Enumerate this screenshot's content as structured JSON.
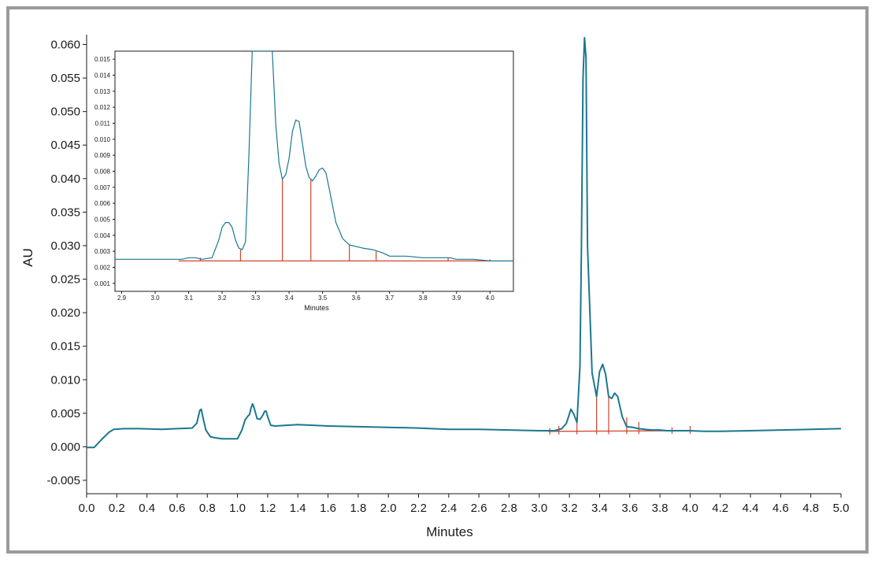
{
  "chart_data": [
    {
      "type": "line",
      "title": "",
      "xlabel": "Minutes",
      "ylabel": "AU",
      "xlim": [
        0.0,
        5.0
      ],
      "ylim": [
        -0.007,
        0.061
      ],
      "xticks": [
        "0.0",
        "0.2",
        "0.4",
        "0.6",
        "0.8",
        "1.0",
        "1.2",
        "1.4",
        "1.6",
        "1.8",
        "2.0",
        "2.2",
        "2.4",
        "2.6",
        "2.8",
        "3.0",
        "3.2",
        "3.4",
        "3.6",
        "3.8",
        "4.0",
        "4.2",
        "4.4",
        "4.6",
        "4.8",
        "5.0"
      ],
      "yticks": [
        "-0.005",
        "0.000",
        "0.005",
        "0.010",
        "0.015",
        "0.020",
        "0.025",
        "0.030",
        "0.035",
        "0.040",
        "0.045",
        "0.050",
        "0.055",
        "0.060"
      ],
      "line_color": "#1a7890",
      "baseline_color": "#d0452a",
      "series": [
        {
          "x": [
            0.0,
            0.05,
            0.1,
            0.15,
            0.18,
            0.25,
            0.35,
            0.5,
            0.6,
            0.7,
            0.73,
            0.75,
            0.76,
            0.77,
            0.79,
            0.82,
            0.86,
            0.9,
            0.95,
            1.0,
            1.03,
            1.05,
            1.07,
            1.08,
            1.09,
            1.1,
            1.11,
            1.13,
            1.15,
            1.17,
            1.18,
            1.19,
            1.2,
            1.22,
            1.25,
            1.4,
            1.6,
            1.8,
            2.0,
            2.2,
            2.4,
            2.6,
            2.8,
            3.0,
            3.05,
            3.1,
            3.15,
            3.18,
            3.2,
            3.21,
            3.23,
            3.25,
            3.27,
            3.28,
            3.29,
            3.3,
            3.31,
            3.32,
            3.35,
            3.38,
            3.4,
            3.42,
            3.44,
            3.46,
            3.48,
            3.5,
            3.52,
            3.55,
            3.58,
            3.62,
            3.66,
            3.7,
            3.75,
            3.8,
            3.85,
            3.9,
            3.95,
            4.0,
            4.1,
            4.2,
            4.4,
            4.6,
            4.8,
            5.0
          ],
          "y": [
            -0.0001,
            -0.0001,
            0.0011,
            0.0022,
            0.0026,
            0.0027,
            0.0027,
            0.0026,
            0.0027,
            0.0028,
            0.0035,
            0.0054,
            0.0056,
            0.0045,
            0.0025,
            0.0015,
            0.0013,
            0.0012,
            0.0012,
            0.0012,
            0.0025,
            0.004,
            0.0046,
            0.0048,
            0.0058,
            0.0064,
            0.0058,
            0.0042,
            0.0041,
            0.0048,
            0.0053,
            0.0053,
            0.0045,
            0.0032,
            0.0031,
            0.0033,
            0.0031,
            0.003,
            0.0029,
            0.0028,
            0.0026,
            0.0026,
            0.0025,
            0.0024,
            0.0024,
            0.0024,
            0.0027,
            0.0035,
            0.0049,
            0.0056,
            0.0048,
            0.0036,
            0.012,
            0.03,
            0.055,
            0.061,
            0.058,
            0.03,
            0.011,
            0.0075,
            0.0112,
            0.0123,
            0.0108,
            0.0075,
            0.0072,
            0.008,
            0.0075,
            0.0045,
            0.003,
            0.0029,
            0.0027,
            0.0026,
            0.0025,
            0.0025,
            0.0024,
            0.0024,
            0.0024,
            0.0024,
            0.0023,
            0.0023,
            0.0024,
            0.0025,
            0.0026,
            0.0027
          ]
        }
      ],
      "baseline": {
        "x": [
          3.06,
          4.0
        ],
        "y": [
          0.0023,
          0.0024
        ]
      },
      "drop_lines": [
        {
          "x": 3.07,
          "y": 0.0028
        },
        {
          "x": 3.13,
          "y": 0.0031
        },
        {
          "x": 3.25,
          "y": 0.0036
        },
        {
          "x": 3.38,
          "y": 0.0075
        },
        {
          "x": 3.46,
          "y": 0.0075
        },
        {
          "x": 3.58,
          "y": 0.0044
        },
        {
          "x": 3.66,
          "y": 0.0037
        },
        {
          "x": 3.88,
          "y": 0.0029
        },
        {
          "x": 4.0,
          "y": 0.0031
        }
      ]
    },
    {
      "type": "line",
      "title": "",
      "xlabel": "Minutes",
      "ylabel": "",
      "xlim": [
        2.88,
        4.07
      ],
      "ylim": [
        0.0005,
        0.0155
      ],
      "xticks": [
        "2.9",
        "3.0",
        "3.1",
        "3.2",
        "3.3",
        "3.4",
        "3.5",
        "3.6",
        "3.7",
        "3.8",
        "3.9",
        "4.0"
      ],
      "yticks": [
        "0.001",
        "0.002",
        "0.003",
        "0.004",
        "0.005",
        "0.006",
        "0.007",
        "0.008",
        "0.009",
        "0.010",
        "0.011",
        "0.012",
        "0.013",
        "0.014",
        "0.015"
      ],
      "line_color": "#1a7890",
      "baseline_color": "#d0452a",
      "series": [
        {
          "x": [
            2.88,
            3.0,
            3.05,
            3.08,
            3.1,
            3.12,
            3.14,
            3.17,
            3.19,
            3.2,
            3.21,
            3.22,
            3.23,
            3.24,
            3.25,
            3.26,
            3.27,
            3.28,
            3.29,
            3.3,
            3.35,
            3.36,
            3.37,
            3.38,
            3.39,
            3.4,
            3.41,
            3.42,
            3.43,
            3.44,
            3.45,
            3.46,
            3.47,
            3.48,
            3.49,
            3.5,
            3.51,
            3.52,
            3.54,
            3.56,
            3.58,
            3.6,
            3.62,
            3.65,
            3.68,
            3.7,
            3.75,
            3.8,
            3.85,
            3.88,
            3.9,
            3.95,
            4.0,
            4.07
          ],
          "y": [
            0.0025,
            0.0025,
            0.0025,
            0.0025,
            0.0026,
            0.0026,
            0.0025,
            0.0026,
            0.0037,
            0.0045,
            0.0048,
            0.0048,
            0.0045,
            0.0037,
            0.0032,
            0.0031,
            0.0036,
            0.009,
            0.0155,
            0.0155,
            0.0155,
            0.011,
            0.0085,
            0.0075,
            0.0078,
            0.0088,
            0.0105,
            0.0112,
            0.0111,
            0.0097,
            0.0083,
            0.0076,
            0.0074,
            0.0077,
            0.0081,
            0.0082,
            0.0079,
            0.0069,
            0.0048,
            0.0038,
            0.0034,
            0.0033,
            0.0032,
            0.0031,
            0.0029,
            0.0027,
            0.0027,
            0.0026,
            0.0026,
            0.0026,
            0.0025,
            0.0025,
            0.0024,
            0.0024
          ]
        }
      ],
      "baseline": {
        "x": [
          3.07,
          4.0
        ],
        "y": [
          0.0024,
          0.0024
        ]
      },
      "drop_lines": [
        {
          "x": 3.07,
          "y": 0.0024
        },
        {
          "x": 3.135,
          "y": 0.0026
        },
        {
          "x": 3.255,
          "y": 0.0031
        },
        {
          "x": 3.38,
          "y": 0.0075
        },
        {
          "x": 3.465,
          "y": 0.0075
        },
        {
          "x": 3.58,
          "y": 0.0034
        },
        {
          "x": 3.66,
          "y": 0.003
        },
        {
          "x": 3.875,
          "y": 0.0026
        },
        {
          "x": 4.0,
          "y": 0.0025
        }
      ]
    }
  ]
}
